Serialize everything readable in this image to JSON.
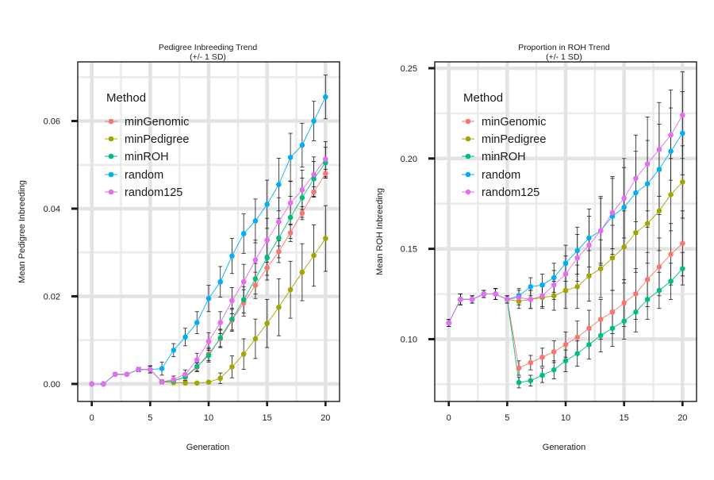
{
  "chart_data": [
    {
      "type": "line",
      "title": "Pedigree Inbreeding Trend",
      "subtitle": "(+/- 1 SD)",
      "xlabel": "Generation",
      "ylabel": "Mean Pedigree Inbreeding",
      "xlim": [
        -1.2,
        21.2
      ],
      "ylim": [
        -0.004,
        0.0735
      ],
      "x_ticks": [
        0,
        5,
        10,
        15,
        20
      ],
      "x_tick_labels": [
        "0",
        "5",
        "10",
        "15",
        "20"
      ],
      "y_ticks": [
        0,
        0.02,
        0.04,
        0.06
      ],
      "y_tick_labels": [
        "0.00",
        "0.02",
        "0.04",
        "0.06"
      ],
      "grid": true,
      "error_bars": "+/- 1 SD",
      "legend": {
        "title": "Method",
        "position": "top-left"
      },
      "x": [
        0,
        1,
        2,
        3,
        4,
        5,
        6,
        7,
        8,
        9,
        10,
        11,
        12,
        13,
        14,
        15,
        16,
        17,
        18,
        19,
        20
      ],
      "series": [
        {
          "name": "minGenomic",
          "color": "#F8766D",
          "values": [
            0,
            0,
            0.0022,
            0.0022,
            0.0033,
            0.0033,
            0.0005,
            0.0007,
            0.0015,
            0.0038,
            0.0068,
            0.0103,
            0.0145,
            0.0185,
            0.0225,
            0.0265,
            0.0302,
            0.0345,
            0.039,
            0.0438,
            0.048
          ],
          "sd": [
            0,
            0,
            0.0003,
            0.0003,
            0.0005,
            0.0008,
            0.0003,
            0.0005,
            0.0008,
            0.001,
            0.0015,
            0.002,
            0.0025,
            0.003,
            0.003,
            0.0028,
            0.0025,
            0.002,
            0.0015,
            0.0012,
            0.001
          ]
        },
        {
          "name": "minPedigree",
          "color": "#A3A500",
          "values": [
            0,
            0,
            0.0022,
            0.0022,
            0.0033,
            0.0033,
            0.0005,
            0.0003,
            0.0002,
            0.0002,
            0.0004,
            0.0013,
            0.0039,
            0.0068,
            0.0103,
            0.0138,
            0.0175,
            0.0215,
            0.0255,
            0.0293,
            0.0332
          ],
          "sd": [
            0,
            0,
            0.0003,
            0.0003,
            0.0005,
            0.0008,
            0.0003,
            0.0002,
            0.0002,
            0.0002,
            0.0003,
            0.0012,
            0.0025,
            0.0035,
            0.0045,
            0.0055,
            0.0065,
            0.0065,
            0.0065,
            0.007,
            0.0075
          ]
        },
        {
          "name": "minROH",
          "color": "#00BF7D",
          "values": [
            0,
            0,
            0.0022,
            0.0022,
            0.0033,
            0.0033,
            0.0005,
            0.0007,
            0.0016,
            0.004,
            0.0065,
            0.0105,
            0.0148,
            0.0192,
            0.024,
            0.0288,
            0.0333,
            0.038,
            0.0425,
            0.0468,
            0.0505
          ],
          "sd": [
            0,
            0,
            0.0003,
            0.0003,
            0.0005,
            0.0008,
            0.0003,
            0.0005,
            0.0008,
            0.001,
            0.0015,
            0.002,
            0.0025,
            0.003,
            0.0035,
            0.004,
            0.0045,
            0.0048,
            0.0045,
            0.004,
            0.0035
          ]
        },
        {
          "name": "random",
          "color": "#00B0F6",
          "values": [
            0,
            0,
            0.0022,
            0.0022,
            0.0033,
            0.0033,
            0.0035,
            0.0077,
            0.0107,
            0.014,
            0.0195,
            0.0233,
            0.0292,
            0.0343,
            0.0372,
            0.041,
            0.0455,
            0.0517,
            0.0545,
            0.06,
            0.0655
          ],
          "sd": [
            0,
            0,
            0.0003,
            0.0003,
            0.0005,
            0.0008,
            0.0015,
            0.0015,
            0.002,
            0.0025,
            0.003,
            0.0035,
            0.004,
            0.0045,
            0.005,
            0.0055,
            0.006,
            0.0055,
            0.005,
            0.0045,
            0.005
          ]
        },
        {
          "name": "random125",
          "color": "#E76BF3",
          "values": [
            0,
            0,
            0.0022,
            0.0022,
            0.0033,
            0.0033,
            0.0005,
            0.001,
            0.0022,
            0.0055,
            0.0097,
            0.014,
            0.019,
            0.0233,
            0.0283,
            0.0328,
            0.037,
            0.0413,
            0.0443,
            0.0478,
            0.0513
          ],
          "sd": [
            0,
            0,
            0.0003,
            0.0003,
            0.0005,
            0.0008,
            0.0005,
            0.0008,
            0.001,
            0.0015,
            0.002,
            0.0025,
            0.003,
            0.004,
            0.0045,
            0.005,
            0.0055,
            0.005,
            0.0045,
            0.004,
            0.004
          ]
        }
      ]
    },
    {
      "type": "line",
      "title": "Proportion in ROH Trend",
      "subtitle": "(+/- 1 SD)",
      "xlabel": "Generation",
      "ylabel": "Mean ROH Inbreeding",
      "xlim": [
        -1.2,
        21.2
      ],
      "ylim": [
        0.0655,
        0.2535
      ],
      "x_ticks": [
        0,
        5,
        10,
        15,
        20
      ],
      "x_tick_labels": [
        "0",
        "5",
        "10",
        "15",
        "20"
      ],
      "y_ticks": [
        0.1,
        0.15,
        0.2,
        0.25
      ],
      "y_tick_labels": [
        "0.10",
        "0.15",
        "0.20",
        "0.25"
      ],
      "grid": true,
      "error_bars": "+/- 1 SD",
      "legend": {
        "title": "Method",
        "position": "top-left"
      },
      "x": [
        0,
        1,
        2,
        3,
        4,
        5,
        6,
        7,
        8,
        9,
        10,
        11,
        12,
        13,
        14,
        15,
        16,
        17,
        18,
        19,
        20
      ],
      "series": [
        {
          "name": "minGenomic",
          "color": "#F8766D",
          "values": [
            0.109,
            0.122,
            0.122,
            0.125,
            0.125,
            0.122,
            0.084,
            0.087,
            0.09,
            0.093,
            0.097,
            0.101,
            0.106,
            0.111,
            0.115,
            0.12,
            0.125,
            0.133,
            0.14,
            0.147,
            0.153
          ],
          "sd": [
            0.002,
            0.003,
            0.002,
            0.002,
            0.003,
            0.002,
            0.004,
            0.004,
            0.005,
            0.006,
            0.007,
            0.009,
            0.01,
            0.011,
            0.012,
            0.013,
            0.014,
            0.015,
            0.016,
            0.017,
            0.018
          ]
        },
        {
          "name": "minPedigree",
          "color": "#A3A500",
          "values": [
            0.109,
            0.122,
            0.122,
            0.125,
            0.125,
            0.122,
            0.121,
            0.122,
            0.123,
            0.124,
            0.127,
            0.129,
            0.135,
            0.139,
            0.145,
            0.151,
            0.159,
            0.164,
            0.171,
            0.18,
            0.187
          ],
          "sd": [
            0.002,
            0.003,
            0.002,
            0.002,
            0.003,
            0.002,
            0.004,
            0.005,
            0.006,
            0.008,
            0.01,
            0.012,
            0.014,
            0.016,
            0.018,
            0.02,
            0.022,
            0.022,
            0.022,
            0.02,
            0.02
          ]
        },
        {
          "name": "minROH",
          "color": "#00BF7D",
          "values": [
            0.109,
            0.122,
            0.122,
            0.125,
            0.125,
            0.122,
            0.076,
            0.077,
            0.08,
            0.083,
            0.088,
            0.092,
            0.097,
            0.102,
            0.106,
            0.11,
            0.115,
            0.122,
            0.127,
            0.132,
            0.139
          ],
          "sd": [
            0.002,
            0.003,
            0.002,
            0.002,
            0.003,
            0.002,
            0.003,
            0.003,
            0.004,
            0.005,
            0.006,
            0.007,
            0.008,
            0.009,
            0.01,
            0.01,
            0.011,
            0.011,
            0.01,
            0.01,
            0.009
          ]
        },
        {
          "name": "random",
          "color": "#00B0F6",
          "values": [
            0.109,
            0.122,
            0.122,
            0.125,
            0.125,
            0.122,
            0.124,
            0.129,
            0.13,
            0.134,
            0.142,
            0.149,
            0.156,
            0.16,
            0.168,
            0.173,
            0.181,
            0.186,
            0.194,
            0.204,
            0.214
          ],
          "sd": [
            0.002,
            0.003,
            0.002,
            0.002,
            0.003,
            0.002,
            0.004,
            0.005,
            0.006,
            0.008,
            0.01,
            0.013,
            0.016,
            0.019,
            0.021,
            0.022,
            0.023,
            0.024,
            0.025,
            0.024,
            0.023
          ]
        },
        {
          "name": "random125",
          "color": "#E76BF3",
          "values": [
            0.109,
            0.122,
            0.122,
            0.125,
            0.125,
            0.122,
            0.123,
            0.122,
            0.124,
            0.13,
            0.136,
            0.145,
            0.152,
            0.16,
            0.17,
            0.178,
            0.189,
            0.197,
            0.205,
            0.213,
            0.224
          ],
          "sd": [
            0.002,
            0.003,
            0.002,
            0.002,
            0.003,
            0.002,
            0.004,
            0.005,
            0.006,
            0.008,
            0.01,
            0.013,
            0.016,
            0.018,
            0.02,
            0.022,
            0.024,
            0.026,
            0.026,
            0.025,
            0.024
          ]
        }
      ]
    }
  ]
}
